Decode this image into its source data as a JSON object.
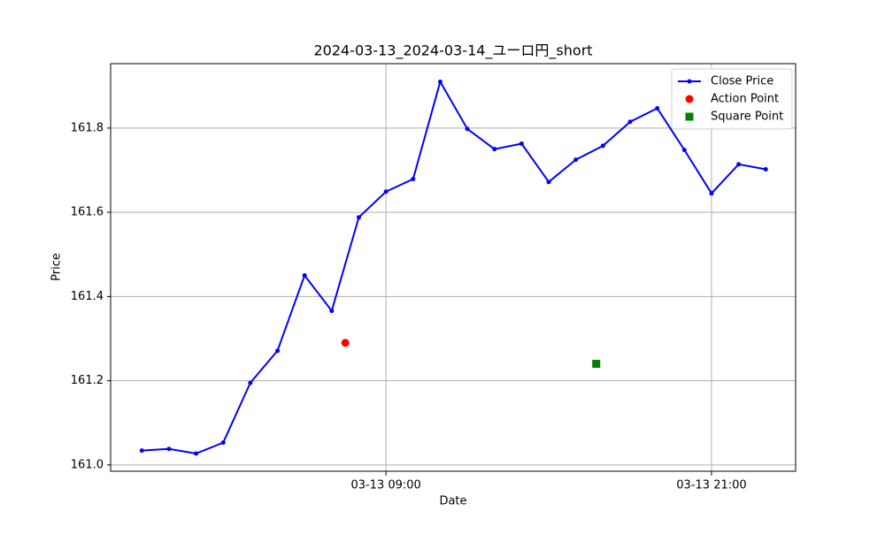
{
  "chart_data": {
    "type": "line",
    "title": "2024-03-13_2024-03-14_ユーロ円_short",
    "x_label": "Date",
    "y_label": "Price",
    "series": [
      {
        "name": "Close Price",
        "color": "#0000ff",
        "marker": "line",
        "x": [
          "03-13 00:00",
          "03-13 01:00",
          "03-13 02:00",
          "03-13 03:00",
          "03-13 04:00",
          "03-13 05:00",
          "03-13 06:00",
          "03-13 07:00",
          "03-13 08:00",
          "03-13 09:00",
          "03-13 10:00",
          "03-13 11:00",
          "03-13 12:00",
          "03-13 13:00",
          "03-13 14:00",
          "03-13 15:00",
          "03-13 16:00",
          "03-13 17:00",
          "03-13 18:00",
          "03-13 19:00",
          "03-13 20:00",
          "03-13 21:00",
          "03-13 22:00",
          "03-13 23:00"
        ],
        "values": [
          161.034,
          161.038,
          161.027,
          161.053,
          161.195,
          161.271,
          161.45,
          161.366,
          161.588,
          161.649,
          161.679,
          161.91,
          161.798,
          161.75,
          161.763,
          161.672,
          161.725,
          161.758,
          161.815,
          161.847,
          161.748,
          161.645,
          161.714,
          161.702
        ]
      },
      {
        "name": "Action Point",
        "color": "#ff0000",
        "marker": "circle",
        "x": [
          "03-13 07:30"
        ],
        "values": [
          161.29
        ]
      },
      {
        "name": "Square Point",
        "color": "#008000",
        "marker": "square",
        "x": [
          "03-13 16:45"
        ],
        "values": [
          161.24
        ]
      }
    ],
    "xlim": [
      "03-12 22:51",
      "03-14 00:06"
    ],
    "xticks": [
      "03-13 09:00",
      "03-13 21:00"
    ],
    "ylim": [
      160.985,
      161.953
    ],
    "yticks": [
      {
        "value": 161,
        "label": "161.0"
      },
      161.2,
      161.4,
      161.6,
      161.8
    ],
    "grid": true,
    "legend": "upper right"
  }
}
